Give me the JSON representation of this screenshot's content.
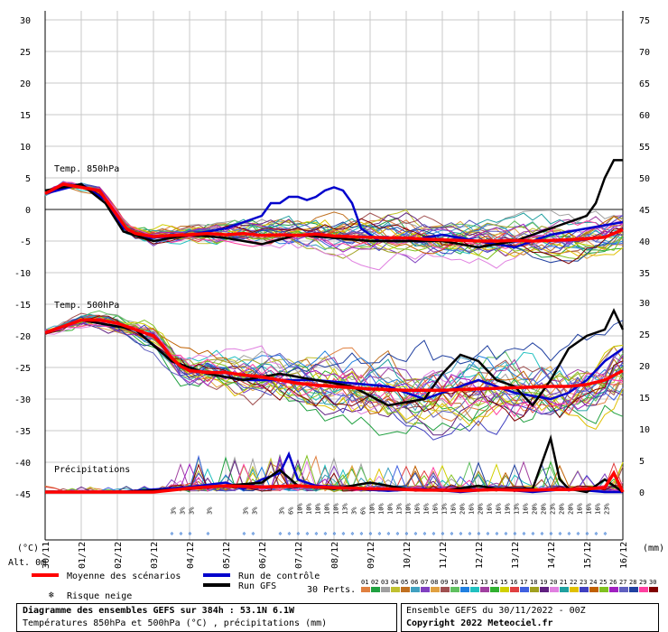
{
  "chart_data": {
    "type": "line",
    "left_axis": {
      "ticks": [
        "30",
        "25",
        "20",
        "15",
        "10",
        "5",
        "0",
        "-5",
        "-10",
        "-15",
        "-20",
        "-25",
        "-30",
        "-35",
        "-40",
        "-45"
      ],
      "unit_label": "(°C)"
    },
    "right_axis": {
      "ticks_temp": [
        "75",
        "70",
        "65",
        "60",
        "55",
        "50",
        "45",
        "40",
        "35"
      ],
      "ticks_precip": [
        "30",
        "25",
        "20",
        "15",
        "10",
        "5",
        "0"
      ],
      "unit_label": "(mm)"
    },
    "alt_label": "Alt. 0m",
    "dates": [
      "30/11",
      "01/12",
      "02/12",
      "03/12",
      "04/12",
      "05/12",
      "06/12",
      "07/12",
      "08/12",
      "09/12",
      "10/12",
      "11/12",
      "12/12",
      "13/12",
      "14/12",
      "15/12",
      "16/12"
    ],
    "panels": [
      {
        "label": "Temp. 850hPa",
        "mean": [
          [
            0,
            2.5
          ],
          [
            12,
            4
          ],
          [
            24,
            3.5
          ],
          [
            36,
            3
          ],
          [
            42,
            1
          ],
          [
            48,
            -1
          ],
          [
            54,
            -3
          ],
          [
            60,
            -3.8
          ],
          [
            72,
            -4.3
          ],
          [
            84,
            -4.1
          ],
          [
            96,
            -4
          ],
          [
            108,
            -3.8
          ],
          [
            120,
            -4
          ],
          [
            132,
            -3.8
          ],
          [
            144,
            -4.1
          ],
          [
            156,
            -4
          ],
          [
            168,
            -4.1
          ],
          [
            180,
            -3.9
          ],
          [
            192,
            -4.2
          ],
          [
            204,
            -4.3
          ],
          [
            216,
            -4.4
          ],
          [
            228,
            -4.5
          ],
          [
            240,
            -4.5
          ],
          [
            252,
            -4.7
          ],
          [
            264,
            -4.8
          ],
          [
            276,
            -4.9
          ],
          [
            288,
            -5
          ],
          [
            300,
            -5
          ],
          [
            312,
            -4.9
          ],
          [
            324,
            -5
          ],
          [
            336,
            -4.9
          ],
          [
            348,
            -4.8
          ],
          [
            360,
            -4.6
          ],
          [
            372,
            -4.4
          ],
          [
            384,
            -3.2
          ]
        ],
        "control": [
          [
            0,
            2.5
          ],
          [
            24,
            4
          ],
          [
            40,
            1.5
          ],
          [
            52,
            -3
          ],
          [
            70,
            -4.5
          ],
          [
            96,
            -4
          ],
          [
            120,
            -3
          ],
          [
            132,
            -2
          ],
          [
            144,
            -1
          ],
          [
            150,
            1
          ],
          [
            156,
            1
          ],
          [
            162,
            2
          ],
          [
            168,
            2
          ],
          [
            174,
            1.5
          ],
          [
            180,
            2
          ],
          [
            186,
            3
          ],
          [
            192,
            3.5
          ],
          [
            198,
            3
          ],
          [
            204,
            1
          ],
          [
            210,
            -3
          ],
          [
            222,
            -5
          ],
          [
            240,
            -5
          ],
          [
            264,
            -4
          ],
          [
            288,
            -5
          ],
          [
            312,
            -6
          ],
          [
            336,
            -4
          ],
          [
            360,
            -3
          ],
          [
            384,
            -2
          ]
        ],
        "gfs": [
          [
            0,
            3
          ],
          [
            24,
            4
          ],
          [
            40,
            1
          ],
          [
            52,
            -3.5
          ],
          [
            72,
            -5
          ],
          [
            96,
            -4
          ],
          [
            120,
            -4.5
          ],
          [
            144,
            -5.5
          ],
          [
            168,
            -4
          ],
          [
            192,
            -4.5
          ],
          [
            216,
            -5
          ],
          [
            240,
            -5
          ],
          [
            264,
            -5
          ],
          [
            288,
            -6
          ],
          [
            312,
            -5
          ],
          [
            336,
            -3
          ],
          [
            348,
            -2
          ],
          [
            360,
            -1
          ],
          [
            366,
            1
          ],
          [
            372,
            5
          ],
          [
            378,
            7.8
          ],
          [
            384,
            7.8
          ]
        ]
      },
      {
        "label": "Temp. 500hPa",
        "mean": [
          [
            0,
            -19.5
          ],
          [
            12,
            -18.5
          ],
          [
            24,
            -17.5
          ],
          [
            36,
            -17.5
          ],
          [
            48,
            -18
          ],
          [
            60,
            -19
          ],
          [
            72,
            -20
          ],
          [
            78,
            -21.5
          ],
          [
            84,
            -23.5
          ],
          [
            90,
            -24.8
          ],
          [
            96,
            -25.5
          ],
          [
            108,
            -25.8
          ],
          [
            120,
            -25.8
          ],
          [
            132,
            -26.2
          ],
          [
            144,
            -26.5
          ],
          [
            156,
            -27
          ],
          [
            168,
            -27.5
          ],
          [
            180,
            -27.8
          ],
          [
            192,
            -28
          ],
          [
            204,
            -28.2
          ],
          [
            216,
            -28.4
          ],
          [
            228,
            -28.5
          ],
          [
            240,
            -28.6
          ],
          [
            252,
            -28.6
          ],
          [
            264,
            -28.6
          ],
          [
            276,
            -28.5
          ],
          [
            288,
            -28.4
          ],
          [
            300,
            -28.3
          ],
          [
            312,
            -28.2
          ],
          [
            324,
            -28.1
          ],
          [
            336,
            -28
          ],
          [
            348,
            -28
          ],
          [
            360,
            -27.7
          ],
          [
            372,
            -27
          ],
          [
            384,
            -25.5
          ]
        ],
        "control": [
          [
            0,
            -19.5
          ],
          [
            24,
            -17.5
          ],
          [
            60,
            -19
          ],
          [
            84,
            -24
          ],
          [
            108,
            -26
          ],
          [
            132,
            -27
          ],
          [
            156,
            -27
          ],
          [
            180,
            -27
          ],
          [
            204,
            -27.5
          ],
          [
            228,
            -28
          ],
          [
            252,
            -30
          ],
          [
            264,
            -29
          ],
          [
            288,
            -27
          ],
          [
            312,
            -29
          ],
          [
            336,
            -30
          ],
          [
            348,
            -29
          ],
          [
            360,
            -27
          ],
          [
            372,
            -24
          ],
          [
            384,
            -22
          ]
        ],
        "gfs": [
          [
            0,
            -19.5
          ],
          [
            24,
            -17.5
          ],
          [
            60,
            -19
          ],
          [
            84,
            -24
          ],
          [
            108,
            -26
          ],
          [
            132,
            -27
          ],
          [
            156,
            -26
          ],
          [
            180,
            -27
          ],
          [
            204,
            -28
          ],
          [
            228,
            -31
          ],
          [
            252,
            -30
          ],
          [
            264,
            -26
          ],
          [
            276,
            -23
          ],
          [
            288,
            -24
          ],
          [
            300,
            -27
          ],
          [
            312,
            -28
          ],
          [
            324,
            -31
          ],
          [
            336,
            -27
          ],
          [
            348,
            -22
          ],
          [
            360,
            -20
          ],
          [
            372,
            -19
          ],
          [
            378,
            -16
          ],
          [
            384,
            -19
          ]
        ]
      },
      {
        "label": "Précipitations",
        "mean": [
          [
            0,
            0
          ],
          [
            24,
            0
          ],
          [
            48,
            0
          ],
          [
            72,
            0
          ],
          [
            84,
            0.3
          ],
          [
            96,
            0.6
          ],
          [
            108,
            0.8
          ],
          [
            120,
            1
          ],
          [
            132,
            0.9
          ],
          [
            144,
            0.8
          ],
          [
            156,
            0.9
          ],
          [
            168,
            1
          ],
          [
            180,
            0.8
          ],
          [
            192,
            0.7
          ],
          [
            204,
            0.6
          ],
          [
            216,
            0.5
          ],
          [
            228,
            0.5
          ],
          [
            240,
            0.4
          ],
          [
            252,
            0.3
          ],
          [
            264,
            0.3
          ],
          [
            276,
            0.2
          ],
          [
            288,
            0.3
          ],
          [
            300,
            0.4
          ],
          [
            312,
            0.3
          ],
          [
            324,
            0.3
          ],
          [
            336,
            0.4
          ],
          [
            348,
            0.4
          ],
          [
            360,
            0.5
          ],
          [
            372,
            0.7
          ],
          [
            378,
            3
          ],
          [
            384,
            0
          ]
        ],
        "control": [
          [
            0,
            0
          ],
          [
            48,
            0
          ],
          [
            96,
            0.8
          ],
          [
            120,
            1.5
          ],
          [
            132,
            0.5
          ],
          [
            144,
            2
          ],
          [
            156,
            3
          ],
          [
            162,
            6
          ],
          [
            168,
            2
          ],
          [
            180,
            1
          ],
          [
            204,
            0.5
          ],
          [
            228,
            0.2
          ],
          [
            252,
            0.5
          ],
          [
            276,
            0
          ],
          [
            300,
            0.5
          ],
          [
            324,
            0
          ],
          [
            348,
            0.5
          ],
          [
            372,
            0
          ],
          [
            384,
            0
          ]
        ],
        "gfs": [
          [
            0,
            0
          ],
          [
            48,
            0
          ],
          [
            96,
            0.5
          ],
          [
            120,
            1
          ],
          [
            144,
            1.5
          ],
          [
            156,
            3.5
          ],
          [
            168,
            1
          ],
          [
            192,
            0.5
          ],
          [
            216,
            1.5
          ],
          [
            240,
            0.5
          ],
          [
            264,
            0.2
          ],
          [
            288,
            1
          ],
          [
            300,
            0.5
          ],
          [
            324,
            0.5
          ],
          [
            336,
            8.5
          ],
          [
            342,
            2
          ],
          [
            348,
            0.5
          ],
          [
            360,
            0
          ],
          [
            372,
            2
          ],
          [
            384,
            0
          ]
        ]
      }
    ],
    "snow_days": [
      {
        "x": 85,
        "label": "3%"
      },
      {
        "x": 91,
        "label": "3%"
      },
      {
        "x": 97,
        "label": "3%"
      },
      {
        "x": 109,
        "label": "3%"
      },
      {
        "x": 133,
        "label": "3%"
      },
      {
        "x": 139,
        "label": "3%"
      },
      {
        "x": 157,
        "label": "3%"
      },
      {
        "x": 163,
        "label": "6%"
      },
      {
        "x": 169,
        "label": "10%"
      },
      {
        "x": 175,
        "label": "10%"
      },
      {
        "x": 181,
        "label": "10%"
      },
      {
        "x": 187,
        "label": "10%"
      },
      {
        "x": 193,
        "label": "10%"
      },
      {
        "x": 199,
        "label": "13%"
      },
      {
        "x": 205,
        "label": "3%"
      },
      {
        "x": 211,
        "label": "6%"
      },
      {
        "x": 217,
        "label": "10%"
      },
      {
        "x": 223,
        "label": "10%"
      },
      {
        "x": 229,
        "label": "10%"
      },
      {
        "x": 235,
        "label": "13%"
      },
      {
        "x": 241,
        "label": "10%"
      },
      {
        "x": 247,
        "label": "16%"
      },
      {
        "x": 253,
        "label": "16%"
      },
      {
        "x": 259,
        "label": "16%"
      },
      {
        "x": 265,
        "label": "13%"
      },
      {
        "x": 271,
        "label": "16%"
      },
      {
        "x": 277,
        "label": "20%"
      },
      {
        "x": 283,
        "label": "16%"
      },
      {
        "x": 289,
        "label": "20%"
      },
      {
        "x": 295,
        "label": "16%"
      },
      {
        "x": 301,
        "label": "16%"
      },
      {
        "x": 307,
        "label": "19%"
      },
      {
        "x": 313,
        "label": "13%"
      },
      {
        "x": 319,
        "label": "16%"
      },
      {
        "x": 325,
        "label": "20%"
      },
      {
        "x": 331,
        "label": "20%"
      },
      {
        "x": 337,
        "label": "23%"
      },
      {
        "x": 343,
        "label": "20%"
      },
      {
        "x": 349,
        "label": "20%"
      },
      {
        "x": 355,
        "label": "16%"
      },
      {
        "x": 361,
        "label": "16%"
      },
      {
        "x": 367,
        "label": "16%"
      },
      {
        "x": 373,
        "label": "23%"
      }
    ],
    "legend": {
      "mean": "Moyenne des scénarios",
      "control": "Run de contrôle",
      "gfs": "Run GFS",
      "snow": "Risque neige",
      "perts_label": "30 Perts.",
      "perts": [
        "01",
        "02",
        "03",
        "04",
        "05",
        "06",
        "07",
        "08",
        "09",
        "10",
        "11",
        "12",
        "13",
        "14",
        "15",
        "16",
        "17",
        "18",
        "19",
        "20",
        "21",
        "22",
        "23",
        "24",
        "25",
        "26",
        "27",
        "28",
        "29",
        "30"
      ]
    },
    "colors": {
      "mean": "#ff0000",
      "control": "#0000cc",
      "gfs": "#000000",
      "perts": [
        "#e08040",
        "#20a040",
        "#a0a0a0",
        "#c0c030",
        "#c07020",
        "#40a0c0",
        "#8040c0",
        "#e0a040",
        "#a05050",
        "#60c060",
        "#2080e0",
        "#20c0c0",
        "#a040a0",
        "#30b030",
        "#d0d000",
        "#e04040",
        "#4060e0",
        "#a0a020",
        "#602080",
        "#e080e0",
        "#20a0a0",
        "#e0c000",
        "#4040c0",
        "#c06000",
        "#80c020",
        "#a020c0",
        "#6060c0",
        "#2040a0",
        "#ff40a0",
        "#800000"
      ]
    }
  },
  "footer": {
    "title": "Diagramme des ensembles GEFS sur 384h : 53.1N 6.1W",
    "subtitle": "Températures 850hPa et 500hPa (°C) , précipitations (mm)",
    "run": "Ensemble GEFS du 30/11/2022 - 00Z",
    "copyright": "Copyright 2022 Meteociel.fr"
  }
}
